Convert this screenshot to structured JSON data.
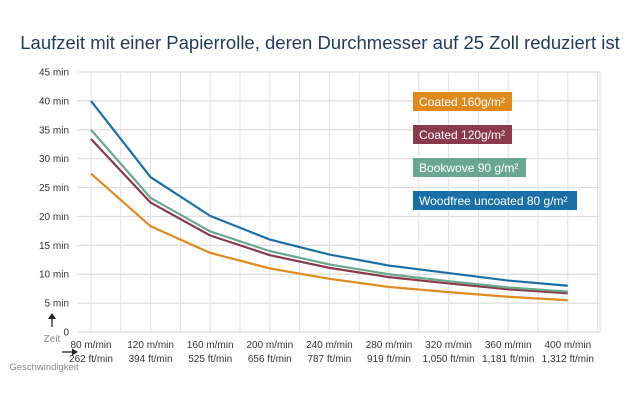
{
  "chart_data": {
    "type": "line",
    "title": "Laufzeit mit einer Papierrolle, deren Durchmesser auf 25 Zoll reduziert ist",
    "ylabel": "Zeit",
    "xlabel": "Geschwindigkeit",
    "ylim": [
      0,
      45
    ],
    "y_ticks": [
      "0",
      "5 min",
      "10 min",
      "15 min",
      "20 min",
      "25 min",
      "30 min",
      "35 min",
      "40 min",
      "45 min"
    ],
    "categories": [
      [
        "80 m/min",
        "262 ft/min"
      ],
      [
        "120 m/min",
        "394 ft/min"
      ],
      [
        "160 m/min",
        "525 ft/min"
      ],
      [
        "200 m/min",
        "656 ft/min"
      ],
      [
        "240 m/min",
        "787 ft/min"
      ],
      [
        "280 m/min",
        "919 ft/min"
      ],
      [
        "320 m/min",
        "1,050 ft/min"
      ],
      [
        "360 m/min",
        "1,181 ft/min"
      ],
      [
        "400 m/min",
        "1,312 ft/min"
      ]
    ],
    "grid": true,
    "legend_position": "top-right",
    "series": [
      {
        "name": "Coated 160g/m²",
        "color": "#e0891c",
        "values": [
          27.4,
          18.3,
          13.7,
          11.0,
          9.2,
          7.8,
          6.9,
          6.1,
          5.5
        ]
      },
      {
        "name": "Coated 120g/m²",
        "color": "#8a3a4b",
        "values": [
          33.4,
          22.4,
          16.7,
          13.3,
          11.1,
          9.5,
          8.4,
          7.4,
          6.7
        ]
      },
      {
        "name": "Bookwove 90 g/m²",
        "color": "#69a88e",
        "values": [
          35.0,
          23.2,
          17.4,
          14.0,
          11.7,
          10.0,
          8.8,
          7.7,
          7.0
        ]
      },
      {
        "name": "Woodfree uncoated 80 g/m²",
        "color": "#1a70a6",
        "values": [
          40.0,
          26.8,
          20.1,
          16.0,
          13.4,
          11.5,
          10.2,
          8.9,
          8.0
        ]
      }
    ]
  }
}
